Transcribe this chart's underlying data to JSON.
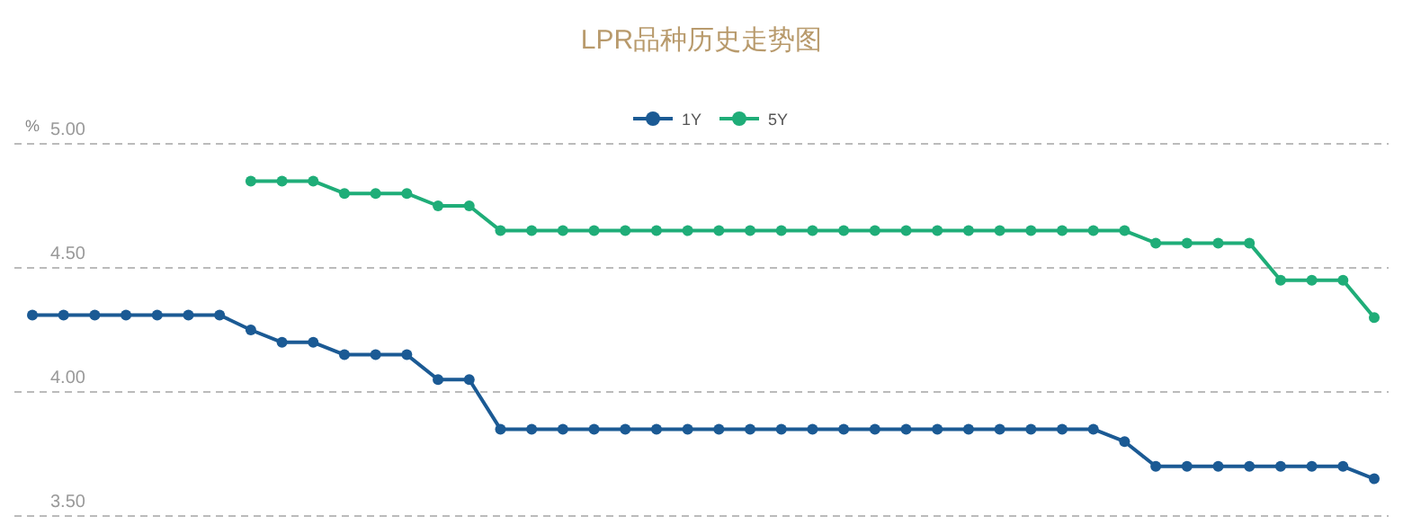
{
  "chart_data": {
    "type": "line",
    "title": "LPR品种历史走势图",
    "ylabel": "%",
    "categories": [
      null,
      null,
      null,
      null,
      null,
      null,
      null,
      null,
      null,
      null,
      null,
      null,
      null,
      null,
      null,
      null,
      null,
      null,
      null,
      null,
      null,
      null,
      null,
      null,
      null,
      null,
      null,
      null,
      null,
      null,
      null,
      null,
      null,
      null,
      null,
      null,
      null,
      null,
      null,
      null,
      null,
      null,
      null,
      null
    ],
    "series": [
      {
        "name": "1Y",
        "color": "#1b5a94",
        "values": [
          4.31,
          4.31,
          4.31,
          4.31,
          4.31,
          4.31,
          4.31,
          4.25,
          4.2,
          4.2,
          4.15,
          4.15,
          4.15,
          4.05,
          4.05,
          3.85,
          3.85,
          3.85,
          3.85,
          3.85,
          3.85,
          3.85,
          3.85,
          3.85,
          3.85,
          3.85,
          3.85,
          3.85,
          3.85,
          3.85,
          3.85,
          3.85,
          3.85,
          3.85,
          3.85,
          3.8,
          3.7,
          3.7,
          3.7,
          3.7,
          3.7,
          3.7,
          3.7,
          3.65
        ]
      },
      {
        "name": "5Y",
        "color": "#1fad78",
        "values": [
          null,
          null,
          null,
          null,
          null,
          null,
          null,
          4.85,
          4.85,
          4.85,
          4.8,
          4.8,
          4.8,
          4.75,
          4.75,
          4.65,
          4.65,
          4.65,
          4.65,
          4.65,
          4.65,
          4.65,
          4.65,
          4.65,
          4.65,
          4.65,
          4.65,
          4.65,
          4.65,
          4.65,
          4.65,
          4.65,
          4.65,
          4.65,
          4.65,
          4.65,
          4.6,
          4.6,
          4.6,
          4.6,
          4.45,
          4.45,
          4.45,
          4.3
        ]
      }
    ],
    "ylim": [
      3.5,
      5.0
    ],
    "yticks": [
      {
        "value": 3.5,
        "label": "3.50"
      },
      {
        "value": 4.0,
        "label": "4.00"
      },
      {
        "value": 4.5,
        "label": "4.50"
      },
      {
        "value": 5.0,
        "label": "5.00"
      }
    ],
    "grid": "y",
    "legend": "top",
    "marker": "circle",
    "line_style": "solid"
  }
}
